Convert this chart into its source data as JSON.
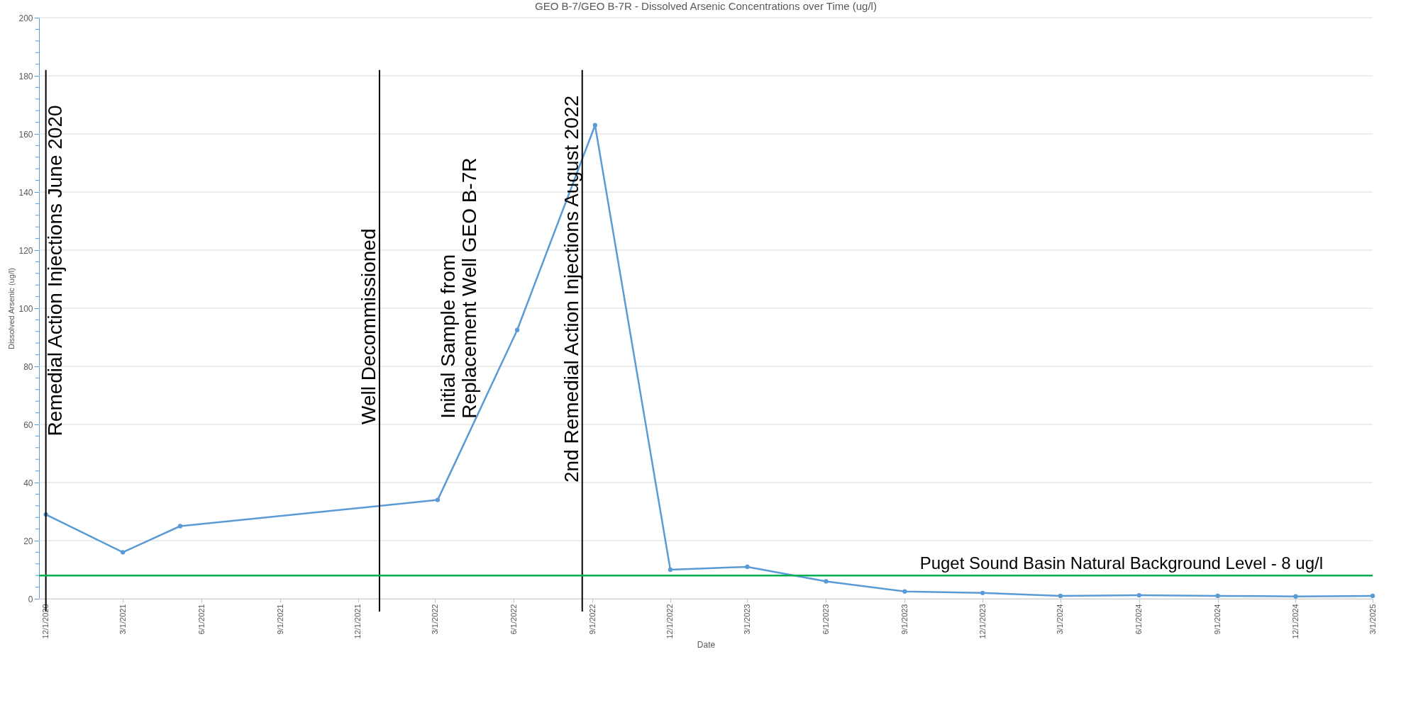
{
  "chart_data": {
    "type": "line",
    "title": "GEO B-7/GEO B-7R - Dissolved Arsenic Concentrations over Time (ug/l)",
    "xlabel": "Date",
    "ylabel": "Dissolved Arsenic (ug/l)",
    "x": [
      "2020-12-01",
      "2021-03-01",
      "2021-05-07",
      "2022-03-04",
      "2022-06-05",
      "2022-09-04",
      "2022-12-01",
      "2023-03-01",
      "2023-06-01",
      "2023-09-01",
      "2023-12-01",
      "2024-03-01",
      "2024-06-01",
      "2024-09-01",
      "2024-12-01",
      "2025-03-01"
    ],
    "series": [
      {
        "color": "#5b9bd5",
        "values": [
          29,
          16,
          25,
          34,
          92.5,
          163,
          10,
          11,
          6,
          2.5,
          2,
          1,
          1.2,
          1,
          0.8,
          1
        ]
      }
    ],
    "xlim": [
      "2020-11-23",
      "2025-03-01"
    ],
    "xticks": [
      {
        "value": "2020-12-01",
        "label": "12/1/2020"
      },
      {
        "value": "2021-03-01",
        "label": "3/1/2021"
      },
      {
        "value": "2021-06-01",
        "label": "6/1/2021"
      },
      {
        "value": "2021-09-01",
        "label": "9/1/2021"
      },
      {
        "value": "2021-12-01",
        "label": "12/1/2021"
      },
      {
        "value": "2022-03-01",
        "label": "3/1/2022"
      },
      {
        "value": "2022-06-01",
        "label": "6/1/2022"
      },
      {
        "value": "2022-09-01",
        "label": "9/1/2022"
      },
      {
        "value": "2022-12-01",
        "label": "12/1/2022"
      },
      {
        "value": "2023-03-01",
        "label": "3/1/2023"
      },
      {
        "value": "2023-06-01",
        "label": "6/1/2023"
      },
      {
        "value": "2023-09-01",
        "label": "9/1/2023"
      },
      {
        "value": "2023-12-01",
        "label": "12/1/2023"
      },
      {
        "value": "2024-03-01",
        "label": "3/1/2024"
      },
      {
        "value": "2024-06-01",
        "label": "6/1/2024"
      },
      {
        "value": "2024-09-01",
        "label": "9/1/2024"
      },
      {
        "value": "2024-12-01",
        "label": "12/1/2024"
      },
      {
        "value": "2025-03-01",
        "label": "3/1/2025"
      }
    ],
    "ylim": [
      0,
      200
    ],
    "yticks": [
      0,
      {
        "value": 4,
        "label": null
      },
      {
        "value": 8,
        "label": null
      },
      {
        "value": 12,
        "label": null
      },
      {
        "value": 16,
        "label": null
      },
      20,
      {
        "value": 24,
        "label": null
      },
      {
        "value": 28,
        "label": null
      },
      {
        "value": 32,
        "label": null
      },
      {
        "value": 36,
        "label": null
      },
      40,
      {
        "value": 44,
        "label": null
      },
      {
        "value": 48,
        "label": null
      },
      {
        "value": 52,
        "label": null
      },
      {
        "value": 56,
        "label": null
      },
      60,
      {
        "value": 64,
        "label": null
      },
      {
        "value": 68,
        "label": null
      },
      {
        "value": 72,
        "label": null
      },
      {
        "value": 76,
        "label": null
      },
      80,
      {
        "value": 84,
        "label": null
      },
      {
        "value": 88,
        "label": null
      },
      {
        "value": 92,
        "label": null
      },
      {
        "value": 96,
        "label": null
      },
      100,
      {
        "value": 104,
        "label": null
      },
      {
        "value": 108,
        "label": null
      },
      {
        "value": 112,
        "label": null
      },
      {
        "value": 116,
        "label": null
      },
      120,
      {
        "value": 124,
        "label": null
      },
      {
        "value": 128,
        "label": null
      },
      {
        "value": 132,
        "label": null
      },
      {
        "value": 136,
        "label": null
      },
      140,
      {
        "value": 144,
        "label": null
      },
      {
        "value": 148,
        "label": null
      },
      {
        "value": 152,
        "label": null
      },
      {
        "value": 156,
        "label": null
      },
      160,
      {
        "value": 164,
        "label": null
      },
      {
        "value": 168,
        "label": null
      },
      {
        "value": 172,
        "label": null
      },
      {
        "value": 176,
        "label": null
      },
      180,
      {
        "value": 184,
        "label": null
      },
      {
        "value": 188,
        "label": null
      },
      {
        "value": 192,
        "label": null
      },
      {
        "value": 196,
        "label": null
      },
      200
    ],
    "grid": "y",
    "marker": "circle",
    "line_style": "solid",
    "ref_lines": [
      {
        "axis": "x",
        "value": "2020-12-01",
        "label": "Remedial Action Injections June 2020",
        "color": "#000000"
      },
      {
        "axis": "x",
        "value": "2021-12-26",
        "label": "Well Decommissioned",
        "color": "#000000"
      },
      {
        "axis": "x",
        "value": "2022-08-20",
        "label": "2nd Remedial Action Injections    August 2022",
        "color": "#000000"
      },
      {
        "axis": "y",
        "value": 8,
        "label": "Puget Sound Basin Natural Background Level - 8 ug/l",
        "color": "#00b050"
      }
    ],
    "annotations": [
      "Initial Sample from\nReplacement Well GEO B-7R"
    ]
  }
}
